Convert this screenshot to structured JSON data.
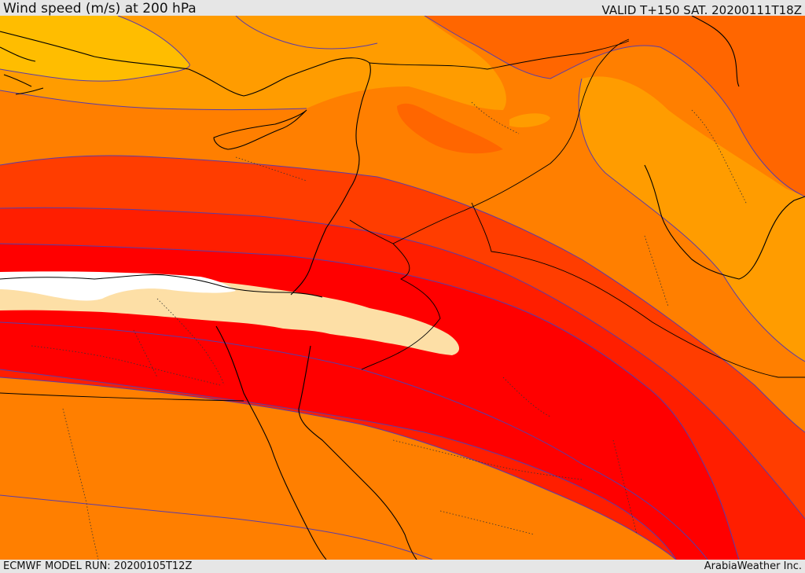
{
  "header": {
    "title": "Wind speed (m/s) at 200 hPa",
    "valid": "VALID T+150 SAT. 20200111T18Z"
  },
  "footer": {
    "run": "ECMWF MODEL RUN: 20200105T12Z",
    "credit": "ArabiaWeather Inc."
  },
  "map": {
    "variable": "wind speed",
    "level": "200 hPa",
    "units": "m/s",
    "fill_colors": {
      "band_yellow": "#ffbd00",
      "band_light_orange": "#ff9c00",
      "band_orange": "#ff7f00",
      "band_dark_orange": "#ff6600",
      "band_red_orange": "#ff3d00",
      "band_red": "#ff1e00",
      "band_core_red": "#ff0000",
      "jet_core": "#fddfa6",
      "jet_max": "#ffffff"
    },
    "contour_color": "#5a3ca8",
    "coastline_color": "#000000",
    "border_style": "dotted"
  }
}
